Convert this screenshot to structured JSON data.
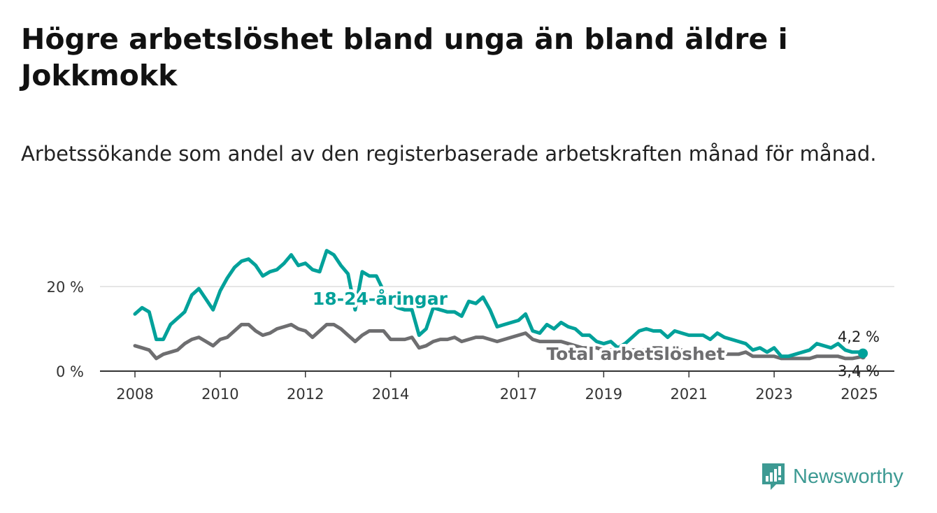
{
  "title": "Högre arbetslöshet bland unga än bland äldre i Jokkmokk",
  "subtitle": "Arbetssökande som andel av den registerbaserade arbetskraften månad för månad.",
  "brand": {
    "name": "Newsworthy",
    "color": "#3d9a93",
    "icon": "bar-chart-logo-icon"
  },
  "colors": {
    "youth": "#00a19a",
    "total": "#6e6e70",
    "grid": "#dddddd",
    "axis": "#333333"
  },
  "chart_data": {
    "type": "line",
    "title": "Högre arbetslöshet bland unga än bland äldre i Jokkmokk",
    "subtitle": "Arbetssökande som andel av den registerbaserade arbetskraften månad för månad.",
    "xlabel": "",
    "ylabel": "",
    "x_range": [
      "2008-01",
      "2025-02"
    ],
    "ylim": [
      0,
      30
    ],
    "y_ticks": [
      0,
      20
    ],
    "y_tick_labels": [
      "0 %",
      "20 %"
    ],
    "x_ticks": [
      "2008",
      "2010",
      "2012",
      "2014",
      "2017",
      "2019",
      "2021",
      "2023",
      "2025"
    ],
    "grid": "horizontal",
    "legend": "inline labels",
    "series": [
      {
        "name": "18-24-åringar",
        "color": "#00a19a",
        "end_label": "4,2 %",
        "points": [
          [
            "2008-01",
            13.5
          ],
          [
            "2008-03",
            15.0
          ],
          [
            "2008-05",
            14.0
          ],
          [
            "2008-07",
            7.5
          ],
          [
            "2008-09",
            7.5
          ],
          [
            "2008-11",
            11.0
          ],
          [
            "2009-01",
            12.5
          ],
          [
            "2009-03",
            14.0
          ],
          [
            "2009-05",
            18.0
          ],
          [
            "2009-07",
            19.5
          ],
          [
            "2009-09",
            17.0
          ],
          [
            "2009-11",
            14.5
          ],
          [
            "2010-01",
            19.0
          ],
          [
            "2010-03",
            22.0
          ],
          [
            "2010-05",
            24.5
          ],
          [
            "2010-07",
            26.0
          ],
          [
            "2010-09",
            26.5
          ],
          [
            "2010-11",
            25.0
          ],
          [
            "2011-01",
            22.5
          ],
          [
            "2011-03",
            23.5
          ],
          [
            "2011-05",
            24.0
          ],
          [
            "2011-07",
            25.5
          ],
          [
            "2011-09",
            27.5
          ],
          [
            "2011-11",
            25.0
          ],
          [
            "2012-01",
            25.5
          ],
          [
            "2012-03",
            24.0
          ],
          [
            "2012-05",
            23.5
          ],
          [
            "2012-07",
            28.5
          ],
          [
            "2012-09",
            27.5
          ],
          [
            "2012-11",
            25.0
          ],
          [
            "2013-01",
            23.0
          ],
          [
            "2013-03",
            14.5
          ],
          [
            "2013-05",
            23.5
          ],
          [
            "2013-07",
            22.5
          ],
          [
            "2013-09",
            22.5
          ],
          [
            "2013-11",
            19.0
          ],
          [
            "2014-01",
            16.0
          ],
          [
            "2014-03",
            15.0
          ],
          [
            "2014-05",
            14.5
          ],
          [
            "2014-07",
            14.5
          ],
          [
            "2014-09",
            8.5
          ],
          [
            "2014-11",
            10.0
          ],
          [
            "2015-01",
            15.0
          ],
          [
            "2015-03",
            14.5
          ],
          [
            "2015-05",
            14.0
          ],
          [
            "2015-07",
            14.0
          ],
          [
            "2015-09",
            13.0
          ],
          [
            "2015-11",
            16.5
          ],
          [
            "2016-01",
            16.0
          ],
          [
            "2016-03",
            17.5
          ],
          [
            "2016-05",
            14.5
          ],
          [
            "2016-07",
            10.5
          ],
          [
            "2016-09",
            11.0
          ],
          [
            "2016-11",
            11.5
          ],
          [
            "2017-01",
            12.0
          ],
          [
            "2017-03",
            13.5
          ],
          [
            "2017-05",
            9.5
          ],
          [
            "2017-07",
            9.0
          ],
          [
            "2017-09",
            11.0
          ],
          [
            "2017-11",
            10.0
          ],
          [
            "2018-01",
            11.5
          ],
          [
            "2018-03",
            10.5
          ],
          [
            "2018-05",
            10.0
          ],
          [
            "2018-07",
            8.5
          ],
          [
            "2018-09",
            8.5
          ],
          [
            "2018-11",
            7.0
          ],
          [
            "2019-01",
            6.5
          ],
          [
            "2019-03",
            7.0
          ],
          [
            "2019-05",
            5.5
          ],
          [
            "2019-07",
            6.5
          ],
          [
            "2019-09",
            8.0
          ],
          [
            "2019-11",
            9.5
          ],
          [
            "2020-01",
            10.0
          ],
          [
            "2020-03",
            9.5
          ],
          [
            "2020-05",
            9.5
          ],
          [
            "2020-07",
            8.0
          ],
          [
            "2020-09",
            9.5
          ],
          [
            "2020-11",
            9.0
          ],
          [
            "2021-01",
            8.5
          ],
          [
            "2021-03",
            8.5
          ],
          [
            "2021-05",
            8.5
          ],
          [
            "2021-07",
            7.5
          ],
          [
            "2021-09",
            9.0
          ],
          [
            "2021-11",
            8.0
          ],
          [
            "2022-01",
            7.5
          ],
          [
            "2022-03",
            7.0
          ],
          [
            "2022-05",
            6.5
          ],
          [
            "2022-07",
            5.0
          ],
          [
            "2022-09",
            5.5
          ],
          [
            "2022-11",
            4.5
          ],
          [
            "2023-01",
            5.5
          ],
          [
            "2023-03",
            3.5
          ],
          [
            "2023-05",
            3.5
          ],
          [
            "2023-07",
            4.0
          ],
          [
            "2023-09",
            4.5
          ],
          [
            "2023-11",
            5.0
          ],
          [
            "2024-01",
            6.5
          ],
          [
            "2024-03",
            6.0
          ],
          [
            "2024-05",
            5.5
          ],
          [
            "2024-07",
            6.5
          ],
          [
            "2024-09",
            5.0
          ],
          [
            "2024-11",
            4.5
          ],
          [
            "2025-01",
            4.5
          ],
          [
            "2025-02",
            4.2
          ]
        ]
      },
      {
        "name": "Total arbetslöshet",
        "color": "#6e6e70",
        "end_label": "3,4 %",
        "points": [
          [
            "2008-01",
            6.0
          ],
          [
            "2008-03",
            5.5
          ],
          [
            "2008-05",
            5.0
          ],
          [
            "2008-07",
            3.0
          ],
          [
            "2008-09",
            4.0
          ],
          [
            "2008-11",
            4.5
          ],
          [
            "2009-01",
            5.0
          ],
          [
            "2009-03",
            6.5
          ],
          [
            "2009-05",
            7.5
          ],
          [
            "2009-07",
            8.0
          ],
          [
            "2009-09",
            7.0
          ],
          [
            "2009-11",
            6.0
          ],
          [
            "2010-01",
            7.5
          ],
          [
            "2010-03",
            8.0
          ],
          [
            "2010-05",
            9.5
          ],
          [
            "2010-07",
            11.0
          ],
          [
            "2010-09",
            11.0
          ],
          [
            "2010-11",
            9.5
          ],
          [
            "2011-01",
            8.5
          ],
          [
            "2011-03",
            9.0
          ],
          [
            "2011-05",
            10.0
          ],
          [
            "2011-07",
            10.5
          ],
          [
            "2011-09",
            11.0
          ],
          [
            "2011-11",
            10.0
          ],
          [
            "2012-01",
            9.5
          ],
          [
            "2012-03",
            8.0
          ],
          [
            "2012-05",
            9.5
          ],
          [
            "2012-07",
            11.0
          ],
          [
            "2012-09",
            11.0
          ],
          [
            "2012-11",
            10.0
          ],
          [
            "2013-01",
            8.5
          ],
          [
            "2013-03",
            7.0
          ],
          [
            "2013-05",
            8.5
          ],
          [
            "2013-07",
            9.5
          ],
          [
            "2013-09",
            9.5
          ],
          [
            "2013-11",
            9.5
          ],
          [
            "2014-01",
            7.5
          ],
          [
            "2014-03",
            7.5
          ],
          [
            "2014-05",
            7.5
          ],
          [
            "2014-07",
            8.0
          ],
          [
            "2014-09",
            5.5
          ],
          [
            "2014-11",
            6.0
          ],
          [
            "2015-01",
            7.0
          ],
          [
            "2015-03",
            7.5
          ],
          [
            "2015-05",
            7.5
          ],
          [
            "2015-07",
            8.0
          ],
          [
            "2015-09",
            7.0
          ],
          [
            "2015-11",
            7.5
          ],
          [
            "2016-01",
            8.0
          ],
          [
            "2016-03",
            8.0
          ],
          [
            "2016-05",
            7.5
          ],
          [
            "2016-07",
            7.0
          ],
          [
            "2016-09",
            7.5
          ],
          [
            "2016-11",
            8.0
          ],
          [
            "2017-01",
            8.5
          ],
          [
            "2017-03",
            9.0
          ],
          [
            "2017-05",
            7.5
          ],
          [
            "2017-07",
            7.0
          ],
          [
            "2017-09",
            7.0
          ],
          [
            "2017-11",
            7.0
          ],
          [
            "2018-01",
            7.0
          ],
          [
            "2018-03",
            6.5
          ],
          [
            "2018-05",
            6.0
          ],
          [
            "2018-07",
            5.5
          ],
          [
            "2018-09",
            5.5
          ],
          [
            "2018-11",
            5.5
          ],
          [
            "2019-01",
            5.0
          ],
          [
            "2019-03",
            5.0
          ],
          [
            "2019-05",
            4.5
          ],
          [
            "2019-07",
            4.5
          ],
          [
            "2019-09",
            5.0
          ],
          [
            "2019-11",
            5.0
          ],
          [
            "2020-01",
            5.0
          ],
          [
            "2020-03",
            5.5
          ],
          [
            "2020-05",
            5.5
          ],
          [
            "2020-07",
            5.0
          ],
          [
            "2020-09",
            5.0
          ],
          [
            "2020-11",
            5.0
          ],
          [
            "2021-01",
            4.5
          ],
          [
            "2021-03",
            4.5
          ],
          [
            "2021-05",
            4.5
          ],
          [
            "2021-07",
            4.0
          ],
          [
            "2021-09",
            4.0
          ],
          [
            "2021-11",
            4.0
          ],
          [
            "2022-01",
            4.0
          ],
          [
            "2022-03",
            4.0
          ],
          [
            "2022-05",
            4.5
          ],
          [
            "2022-07",
            3.5
          ],
          [
            "2022-09",
            3.5
          ],
          [
            "2022-11",
            3.5
          ],
          [
            "2023-01",
            3.5
          ],
          [
            "2023-03",
            3.0
          ],
          [
            "2023-05",
            3.0
          ],
          [
            "2023-07",
            3.0
          ],
          [
            "2023-09",
            3.0
          ],
          [
            "2023-11",
            3.0
          ],
          [
            "2024-01",
            3.5
          ],
          [
            "2024-03",
            3.5
          ],
          [
            "2024-05",
            3.5
          ],
          [
            "2024-07",
            3.5
          ],
          [
            "2024-09",
            3.0
          ],
          [
            "2024-11",
            3.0
          ],
          [
            "2025-01",
            3.3
          ],
          [
            "2025-02",
            3.4
          ]
        ]
      }
    ]
  }
}
